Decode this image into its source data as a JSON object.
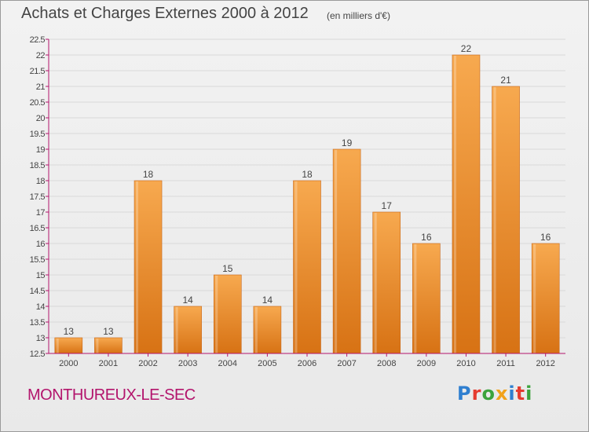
{
  "header": {
    "title": "Achats et Charges Externes 2000 à 2012",
    "subtitle": "(en milliers d'€)"
  },
  "footer": {
    "location": "MONTHUREUX-LE-SEC",
    "brand": "Proxiti",
    "brand_colors": [
      "#2f7fd0",
      "#e53b2f",
      "#3ca33c",
      "#f2a21a",
      "#2f7fd0",
      "#e53b2f",
      "#3ca33c"
    ]
  },
  "colors": {
    "bar_light": "#f7a94f",
    "bar_dark": "#d77214",
    "axis": "#b3146c",
    "grid": "#d9d9d9",
    "text": "#444444"
  },
  "chart_data": {
    "type": "bar",
    "title": "Achats et Charges Externes 2000 à 2012",
    "subtitle": "(en milliers d'€)",
    "categories": [
      "2000",
      "2001",
      "2002",
      "2003",
      "2004",
      "2005",
      "2006",
      "2007",
      "2008",
      "2009",
      "2010",
      "2011",
      "2012"
    ],
    "values": [
      13,
      13,
      18,
      14,
      15,
      14,
      18,
      19,
      17,
      16,
      22,
      21,
      16
    ],
    "data_labels": [
      "13",
      "13",
      "18",
      "14",
      "15",
      "14",
      "18",
      "19",
      "17",
      "16",
      "22",
      "21",
      "16"
    ],
    "ylim": [
      12.5,
      22.5
    ],
    "yticks": [
      12.5,
      13,
      13.5,
      14,
      14.5,
      15,
      15.5,
      16,
      16.5,
      17,
      17.5,
      18,
      18.5,
      19,
      19.5,
      20,
      20.5,
      21,
      21.5,
      22,
      22.5
    ],
    "grid": true,
    "xlabel": "",
    "ylabel": ""
  }
}
